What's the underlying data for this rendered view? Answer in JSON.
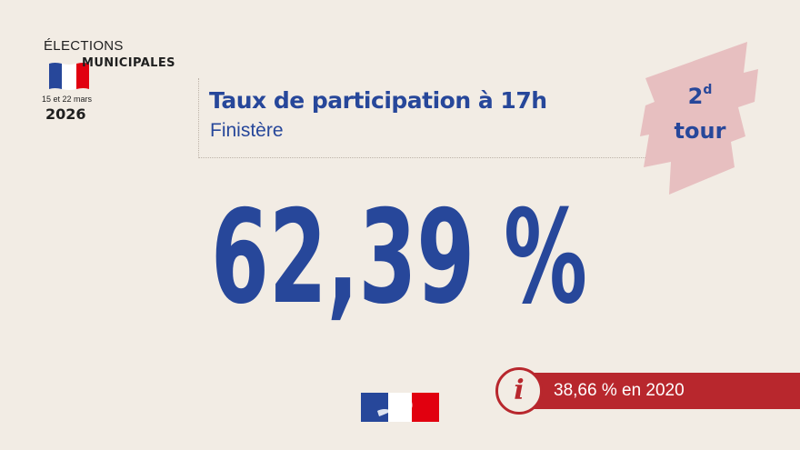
{
  "logo": {
    "line1": "ÉLECTIONS",
    "line2": "MUNICIPALES",
    "dates": "15 et 22 mars",
    "year": "2026"
  },
  "header": {
    "title": "Taux de participation à 17h",
    "subtitle": "Finistère"
  },
  "badge": {
    "number": "2",
    "suffix": "d",
    "word": "tour"
  },
  "result": {
    "value": "62,39 %"
  },
  "info": {
    "icon": "info-icon",
    "glyph": "i",
    "text": "38,66 % en 2020"
  },
  "colors": {
    "background": "#f2ece4",
    "primary_blue": "#27479a",
    "accent_red": "#b8272d",
    "badge_pink": "#e7bfc0",
    "flag_blue": "#27479a",
    "flag_white": "#ffffff",
    "flag_red": "#e1000f"
  }
}
